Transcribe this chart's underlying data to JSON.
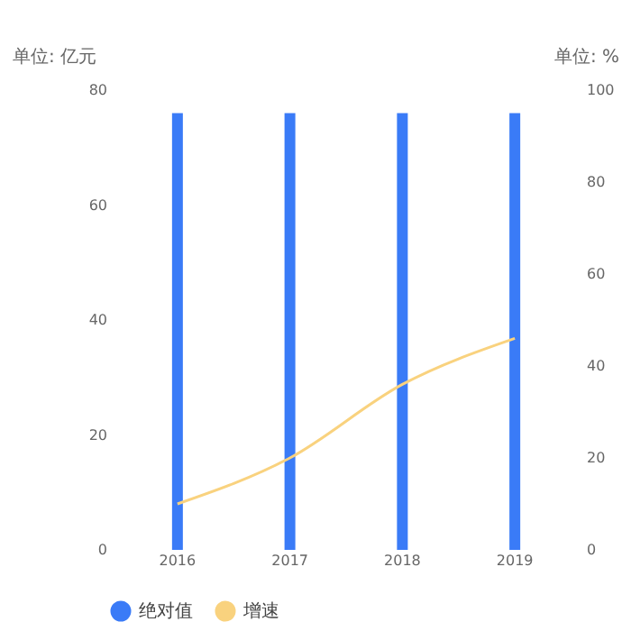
{
  "chart_data": {
    "type": "bar",
    "categories": [
      "2016",
      "2017",
      "2018",
      "2019"
    ],
    "ylabel": "单位: 亿元",
    "y2label": "单位: %",
    "ylim": [
      0,
      80
    ],
    "yticks": [
      0,
      20,
      40,
      60,
      80
    ],
    "y2lim": [
      0,
      100
    ],
    "y2ticks": [
      0,
      20,
      40,
      60,
      80,
      100
    ],
    "series": [
      {
        "name": "绝对值",
        "color": "#3a7bf7",
        "values": [
          76,
          76,
          76,
          76
        ]
      },
      {
        "name": "增速",
        "type": "line",
        "axis": "y2",
        "color": "#f9d27e",
        "values": [
          10,
          20,
          36,
          46
        ]
      }
    ],
    "grid": false,
    "legend": "bottom"
  }
}
